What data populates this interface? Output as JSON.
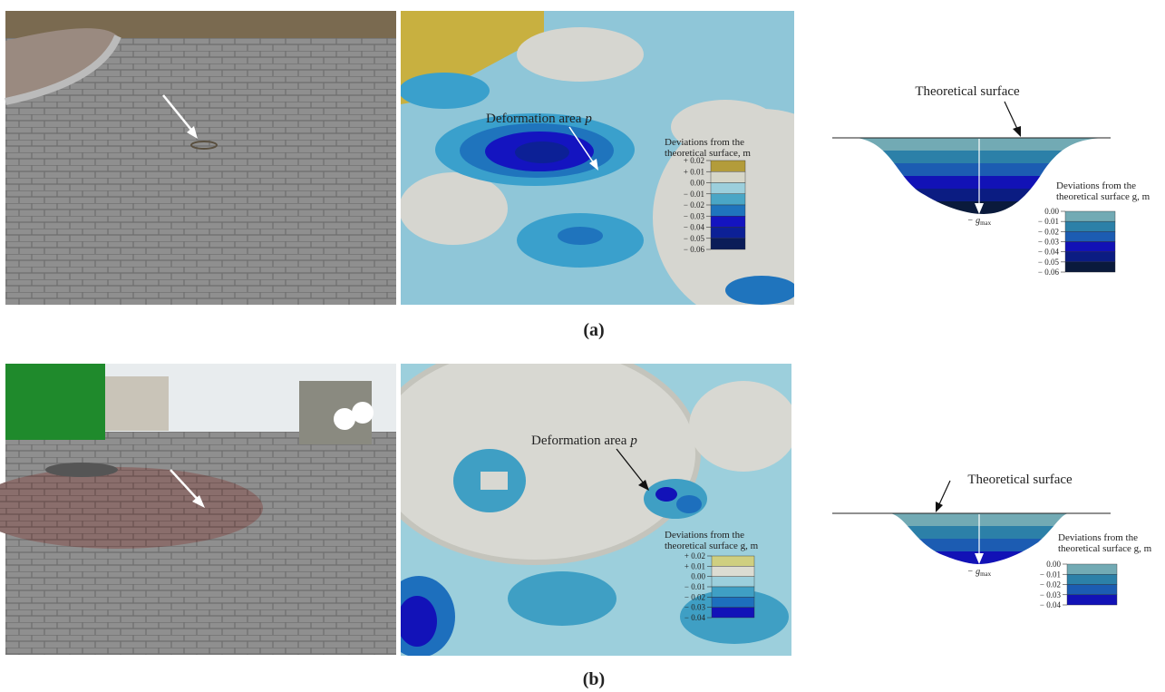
{
  "panels": [
    {
      "caption": "(a)",
      "map": {
        "annotation": "Deformation area",
        "annotation_var": "p",
        "legend_title": [
          "Deviations from the",
          "theoretical surface, m"
        ],
        "legend_labels": [
          "+ 0.02",
          "+ 0.01",
          "0.00",
          "− 0.01",
          "− 0.02",
          "− 0.03",
          "− 0.04",
          "− 0.05",
          "− 0.06"
        ],
        "legend_colors": [
          "#b39c3a",
          "#d6d6c8",
          "#9ccfdc",
          "#4aa6c6",
          "#1f74bd",
          "#1414c0",
          "#0c2096",
          "#0a1c58"
        ]
      },
      "profile": {
        "annotation": "Theoretical surface",
        "max_label": "− g",
        "max_subscript": "max",
        "legend_title": [
          "Deviations from the",
          "theoretical surface g, m"
        ],
        "legend_labels": [
          "0.00",
          "− 0.01",
          "− 0.02",
          "− 0.03",
          "− 0.04",
          "− 0.05",
          "− 0.06"
        ],
        "legend_colors": [
          "#72aab4",
          "#2c80a8",
          "#1c5cb2",
          "#1212b6",
          "#0b1c82",
          "#0a1a3c"
        ]
      }
    },
    {
      "caption": "(b)",
      "map": {
        "annotation": "Deformation area",
        "annotation_var": "p",
        "legend_title": [
          "Deviations from the",
          "theoretical surface g, m"
        ],
        "legend_labels": [
          "+ 0.02",
          "+ 0.01",
          "0.00",
          "− 0.01",
          "− 0.02",
          "− 0.03",
          "− 0.04"
        ],
        "legend_colors": [
          "#cfcf80",
          "#dcdcd2",
          "#9ccfdc",
          "#3f9fc4",
          "#1d6fbd",
          "#1212b8"
        ]
      },
      "profile": {
        "annotation": "Theoretical surface",
        "max_label": "− g",
        "max_subscript": "max",
        "legend_title": [
          "Deviations from the",
          "theoretical surface g, m"
        ],
        "legend_labels": [
          "0.00",
          "− 0.01",
          "− 0.02",
          "− 0.03",
          "− 0.04"
        ],
        "legend_colors": [
          "#72aab4",
          "#2c80a8",
          "#1c5cb2",
          "#1212b6"
        ]
      }
    }
  ]
}
